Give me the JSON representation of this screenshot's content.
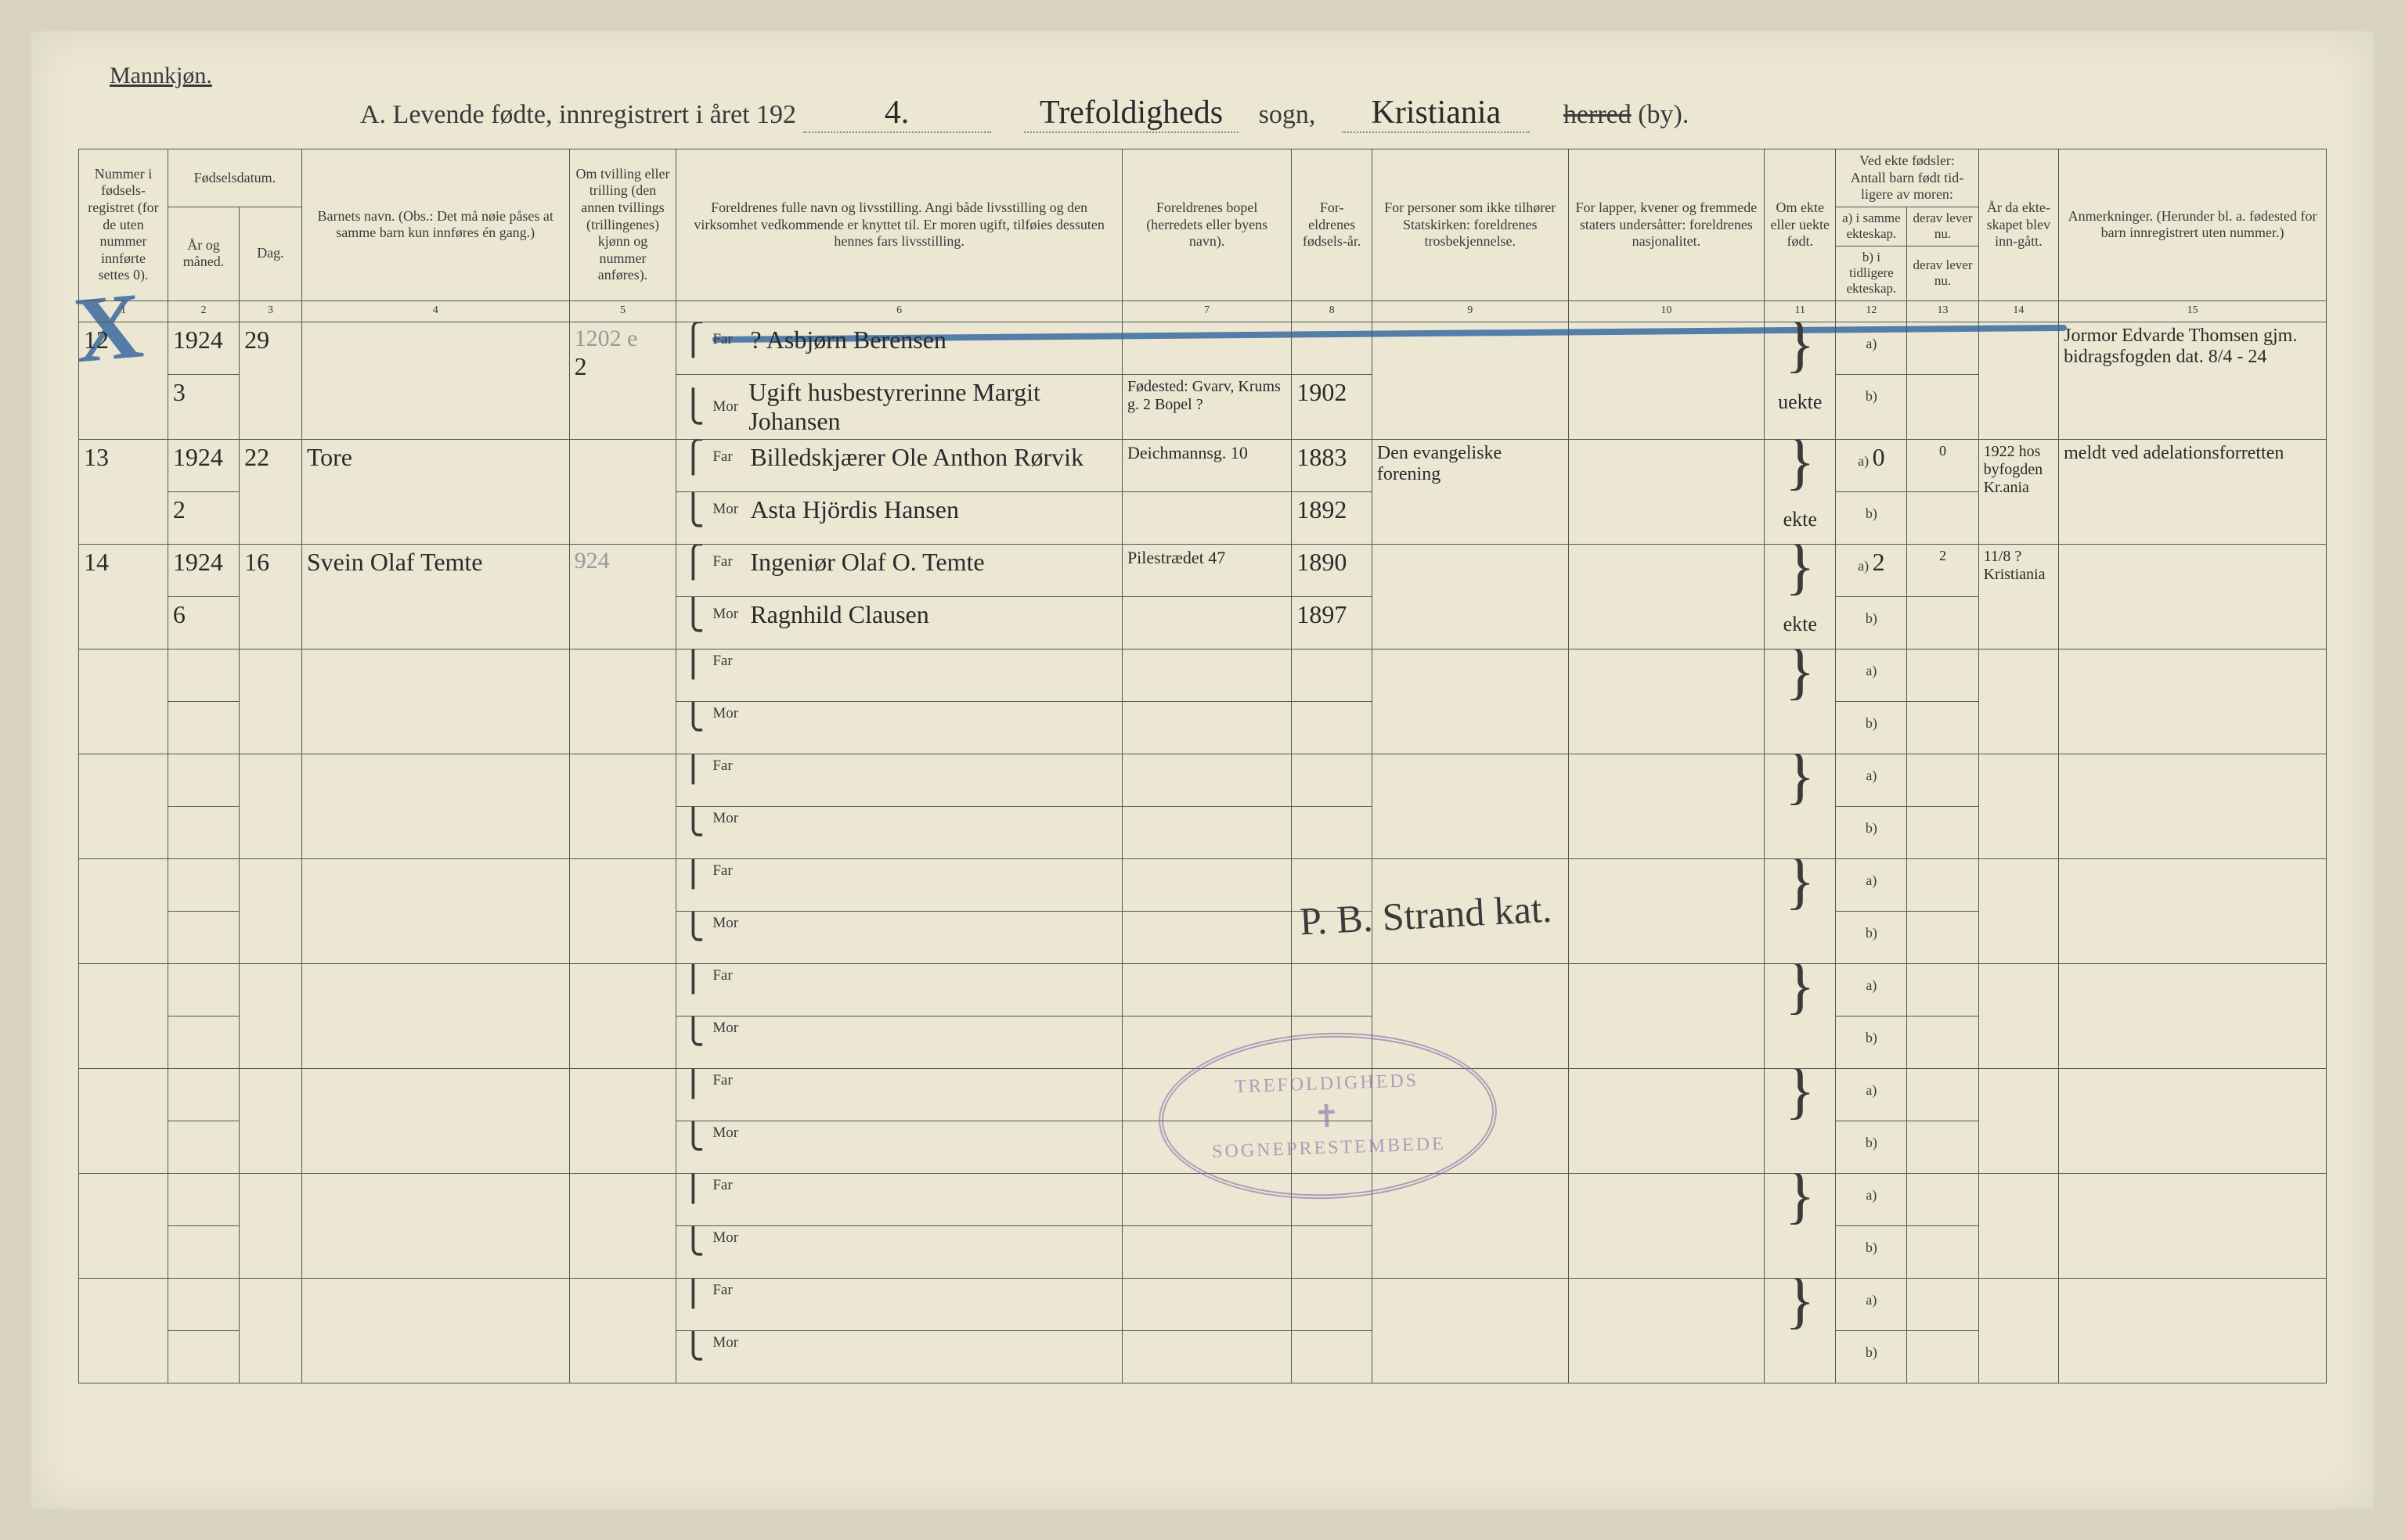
{
  "gender_label": "Mannkjøn.",
  "title": {
    "prefix": "A.  Levende fødte, innregistrert i året 192",
    "year_suffix": "4.",
    "parish": "Trefoldigheds",
    "parish_label": "sogn,",
    "city": "Kristiania",
    "herred": "herred",
    "by": "(by)."
  },
  "headers": {
    "c1": "Nummer i fødsels-registret (for de uten nummer innførte settes 0).",
    "c2": "Fødselsdatum.",
    "c2a": "År og måned.",
    "c2b": "Dag.",
    "c4": "Barnets navn.\n(Obs.: Det må nøie påses at samme barn kun innføres én gang.)",
    "c5": "Om tvilling eller trilling (den annen tvillings (trillingenes) kjønn og nummer anføres).",
    "c6": "Foreldrenes fulle navn og livsstilling.\nAngi både livsstilling og den virksomhet vedkommende er knyttet til. Er moren ugift, tilføies dessuten hennes fars livsstilling.",
    "c7": "Foreldrenes bopel (herredets eller byens navn).",
    "c8": "For-eldrenes fødsels-år.",
    "c9": "For personer som ikke tilhører Statskirken: foreldrenes trosbekjennelse.",
    "c10": "For lapper, kvener og fremmede staters undersåtter: foreldrenes nasjonalitet.",
    "c11": "Om ekte eller uekte født.",
    "c12": "Ved ekte fødsler: Antall barn født tid-ligere av moren:",
    "c12a": "a) i samme ekteskap.",
    "c12b": "b) i tidligere ekteskap.",
    "c13a": "derav lever nu.",
    "c13b": "derav lever nu.",
    "c14": "År da ekte-skapet blev inn-gått.",
    "c15": "Anmerkninger.\n(Herunder bl. a. fødested for barn innregistrert uten nummer.)"
  },
  "colnums": [
    "1",
    "2",
    "3",
    "4",
    "5",
    "6",
    "7",
    "8",
    "9",
    "10",
    "11",
    "12",
    "13",
    "14",
    "15"
  ],
  "far": "Far",
  "mor": "Mor",
  "a_lbl": "a)",
  "b_lbl": "b)",
  "rows": [
    {
      "num": "12",
      "year": "1924",
      "month": "3",
      "day": "29",
      "name": "",
      "pencil": "1202 e",
      "twin": "2",
      "far": "?   Asbjørn Berensen",
      "mor": "Ugift husbestyrerinne Margit Johansen",
      "bopel_far": "",
      "bopel_mor": "Fødested: Gvarv, Krums g. 2  Bopel  ?",
      "fy_far": "",
      "fy_mor": "1902",
      "tros": "",
      "nasj": "",
      "ekte": "uekte",
      "a12": "",
      "a13": "",
      "b12": "",
      "b13": "",
      "ekt_aar": "",
      "anm": "Jormor Edvarde Thomsen gjm. bidragsfogden dat. 8/4 - 24"
    },
    {
      "num": "13",
      "year": "1924",
      "month": "2",
      "day": "22",
      "name": "Tore",
      "pencil": "",
      "twin": "",
      "far": "Billedskjærer Ole Anthon Rørvik",
      "mor": "Asta Hjördis Hansen",
      "bopel_far": "Deichmannsg. 10",
      "bopel_mor": "",
      "fy_far": "1883",
      "fy_mor": "1892",
      "tros": "Den evangeliske forening",
      "nasj": "",
      "ekte": "ekte",
      "a12": "0",
      "a13": "0",
      "b12": "",
      "b13": "",
      "ekt_aar": "1922 hos byfogden Kr.ania",
      "anm": "meldt ved adelationsforretten"
    },
    {
      "num": "14",
      "year": "1924",
      "month": "6",
      "day": "16",
      "name": "Svein Olaf Temte",
      "pencil": "924",
      "twin": "",
      "far": "Ingeniør Olaf O. Temte",
      "mor": "Ragnhild Clausen",
      "bopel_far": "Pilestrædet 47",
      "bopel_mor": "",
      "fy_far": "1890",
      "fy_mor": "1897",
      "tros": "",
      "nasj": "",
      "ekte": "ekte",
      "a12": "2",
      "a13": "2",
      "b12": "",
      "b13": "",
      "ekt_aar": "11/8 ? Kristiania",
      "anm": ""
    }
  ],
  "stamp": {
    "top": "TREFOLDIGHEDS",
    "bottom": "SOGNEPRESTEMBEDE"
  },
  "signature": "P. B. Strand  kat.",
  "colors": {
    "paper": "#ebe7d3",
    "ink": "#3a3a3a",
    "blue_pencil": "#3a6aa0",
    "stamp": "#8a6aa8",
    "border": "#555"
  }
}
